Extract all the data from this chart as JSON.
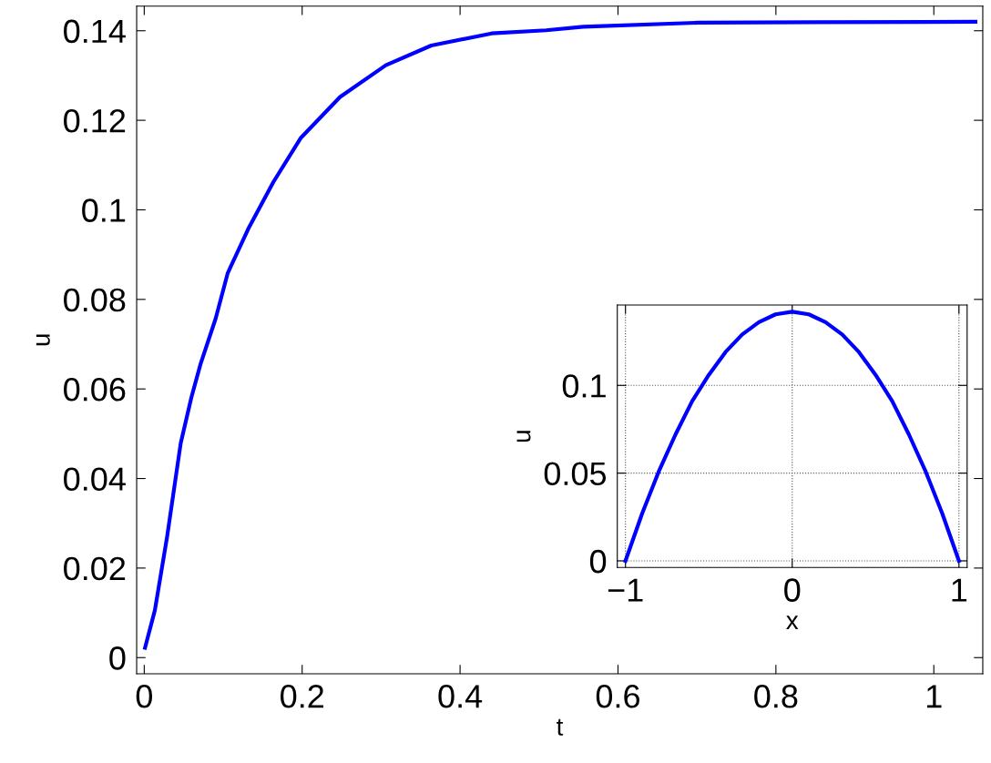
{
  "chart_data": [
    {
      "type": "line",
      "xlabel": "t",
      "ylabel": "u",
      "xlim": [
        -0.0096,
        1.062
      ],
      "ylim": [
        -0.0036,
        0.1455
      ],
      "xticks": [
        0,
        0.2,
        0.4,
        0.6,
        0.8,
        1
      ],
      "yticks": [
        0,
        0.02,
        0.04,
        0.06,
        0.08,
        0.1,
        0.12,
        0.14
      ],
      "series": [
        {
          "color": "#0000ff",
          "x": [
            0.001,
            0.0135,
            0.0289,
            0.0462,
            0.0597,
            0.0712,
            0.0904,
            0.1058,
            0.1327,
            0.1635,
            0.198,
            0.248,
            0.306,
            0.3635,
            0.44,
            0.509,
            0.556,
            0.702,
            0.85,
            1.0527
          ],
          "values": [
            0.0022,
            0.0106,
            0.0269,
            0.0479,
            0.0581,
            0.0655,
            0.0757,
            0.0859,
            0.0961,
            0.1062,
            0.116,
            0.1252,
            0.1323,
            0.1367,
            0.1394,
            0.1401,
            0.1409,
            0.1418,
            0.1419,
            0.142
          ]
        }
      ]
    },
    {
      "type": "line",
      "xlabel": "x",
      "ylabel": "u",
      "xlim": [
        -1.049,
        1.049
      ],
      "ylim": [
        -0.0038,
        0.1458
      ],
      "xticks": [
        {
          "value": -1,
          "label": "−1"
        },
        0,
        1
      ],
      "yticks": [
        0,
        0.05,
        0.1
      ],
      "grid": true,
      "series": [
        {
          "color": "#0000ff",
          "x": [
            -1,
            -0.9,
            -0.8,
            -0.7,
            -0.6,
            -0.5,
            -0.4,
            -0.3,
            -0.2,
            -0.1,
            0,
            0.1,
            0.2,
            0.3,
            0.4,
            0.5,
            0.6,
            0.7,
            0.8,
            0.9,
            1
          ],
          "values": [
            0,
            0.027,
            0.051,
            0.072,
            0.091,
            0.106,
            0.119,
            0.129,
            0.136,
            0.1405,
            0.142,
            0.1405,
            0.136,
            0.129,
            0.119,
            0.106,
            0.091,
            0.072,
            0.051,
            0.027,
            0
          ]
        }
      ]
    }
  ]
}
